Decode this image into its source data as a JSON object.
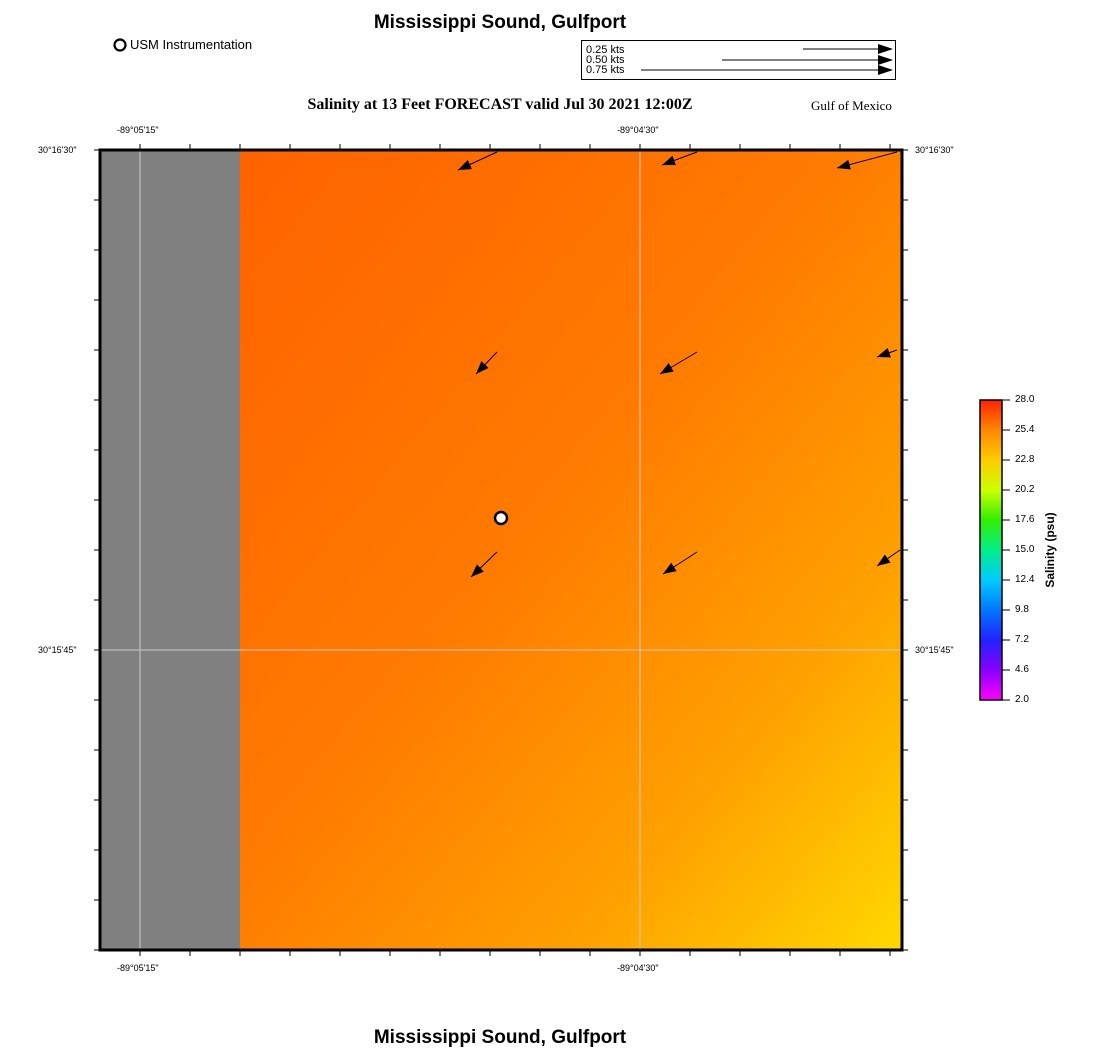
{
  "header": {
    "title": "Mississippi Sound, Gulfport",
    "subtitle": "Salinity at 13 Feet FORECAST valid Jul 30 2021 12:00Z",
    "region": "Gulf of Mexico",
    "footer_title": "Mississippi Sound, Gulfport"
  },
  "legend": {
    "instrument_label": "USM Instrumentation"
  },
  "speed_key": {
    "entries": [
      {
        "label": "0.25 kts",
        "speed": 0.25
      },
      {
        "label": "0.50 kts",
        "speed": 0.5
      },
      {
        "label": "0.75 kts",
        "speed": 0.75
      }
    ]
  },
  "map": {
    "lon_labels": [
      "-89°05'15\"",
      "-89°04'30\""
    ],
    "lat_labels": [
      "30°16'30\"",
      "30°15'45\""
    ],
    "land_color": "#808080",
    "field_colors": [
      "#ff6200",
      "#ff7a00",
      "#ffa000",
      "#ffd800"
    ],
    "instrument_station": {
      "name": "USM Instrumentation"
    }
  },
  "colorbar": {
    "title": "Salinity (psu)",
    "ticks": [
      "28.0",
      "25.4",
      "22.8",
      "20.2",
      "17.6",
      "15.0",
      "12.4",
      "9.8",
      "7.2",
      "4.6",
      "2.0"
    ],
    "gradient": [
      "#ff2200",
      "#ff8800",
      "#ffcc00",
      "#ccff00",
      "#33ee00",
      "#00ee88",
      "#00ccff",
      "#0077ff",
      "#2222ff",
      "#8800ff",
      "#ff00ff"
    ]
  }
}
